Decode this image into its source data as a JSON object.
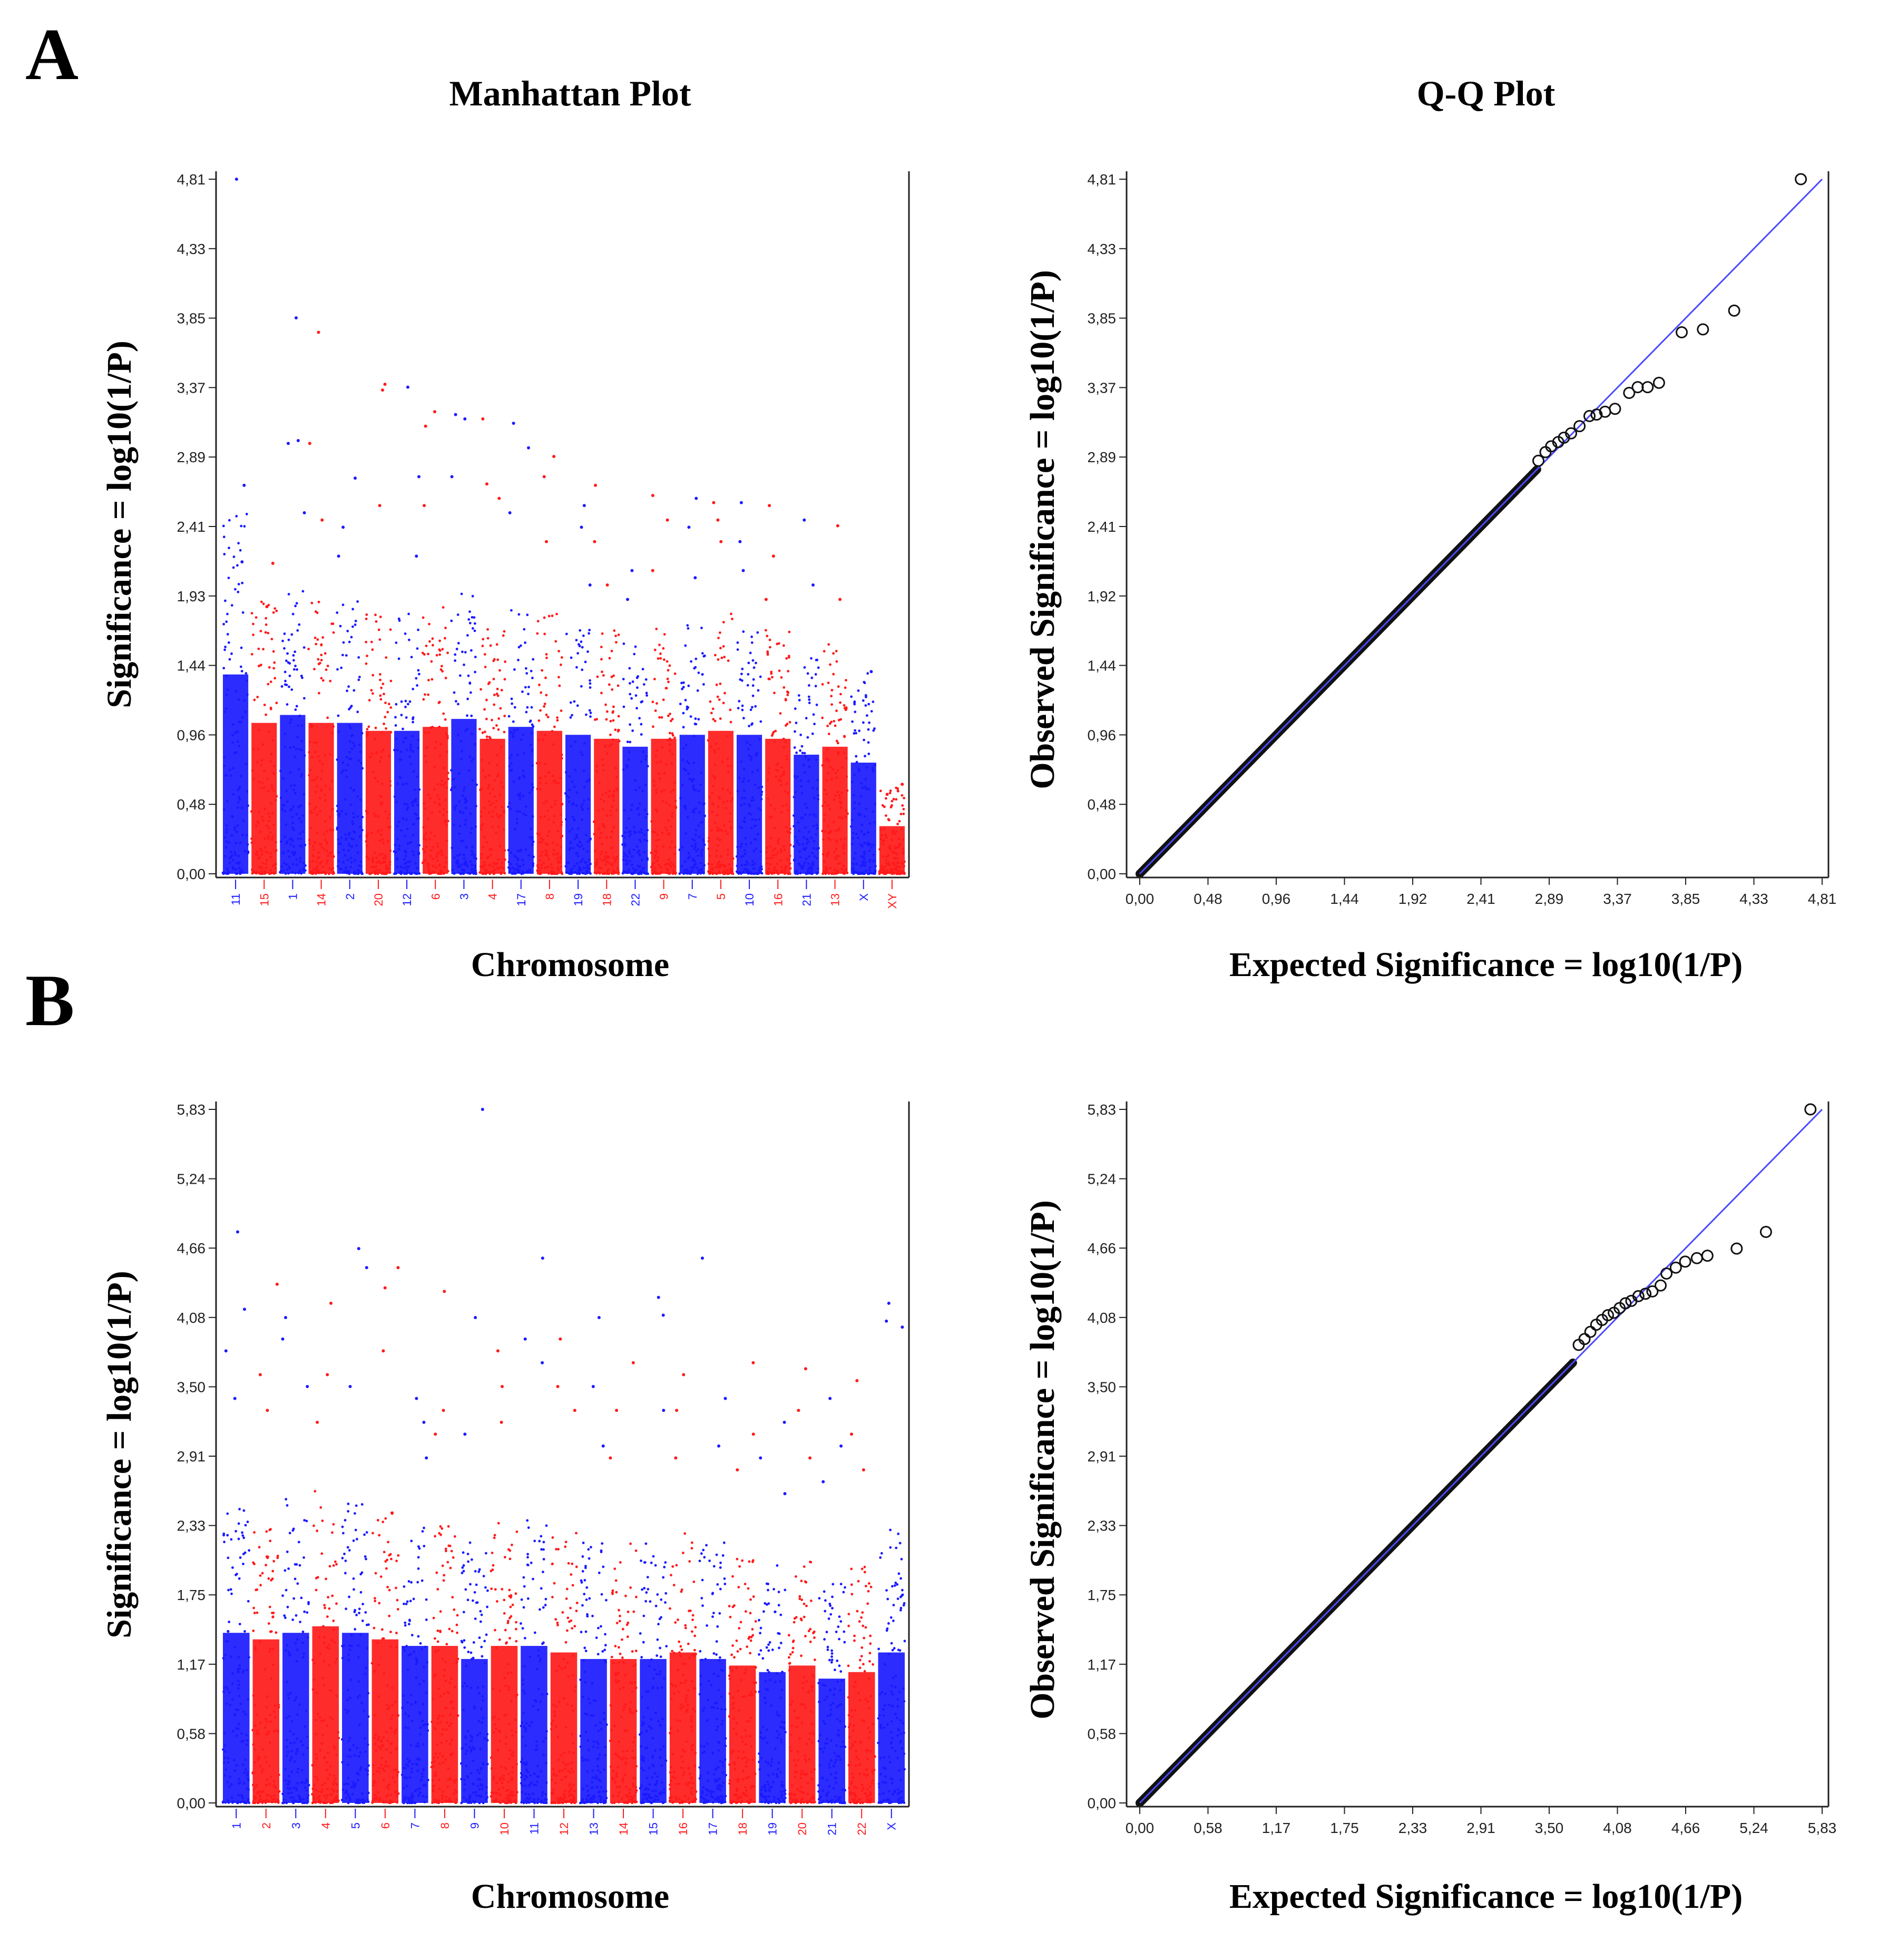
{
  "colors": {
    "blue": "#1a1aff",
    "red": "#ff1a1a",
    "axis": "#222222",
    "diag": "#4a4aff",
    "circle": "#111111"
  },
  "panels": [
    {
      "label": "A",
      "manhattan": {
        "title": "Manhattan Plot",
        "xlabel": "Chromosome",
        "ylabel": "Significance = log10(1/P)",
        "yticks": [
          "0,00",
          "0,48",
          "0,96",
          "1,44",
          "1,93",
          "2,41",
          "2,89",
          "3,37",
          "3,85",
          "4,33",
          "4,81"
        ]
      },
      "qq": {
        "title": "Q-Q Plot",
        "xlabel": "Expected Significance = log10(1/P)",
        "ylabel": "Observed Significance = log10(1/P)",
        "yticks": [
          "0,00",
          "0,48",
          "0,96",
          "1,44",
          "1,92",
          "2,41",
          "2,89",
          "3,37",
          "3,85",
          "4,33",
          "4,81"
        ],
        "xticks": [
          "0,00",
          "0,48",
          "0,96",
          "1,44",
          "1,92",
          "2,41",
          "2,89",
          "3,37",
          "3,85",
          "4,33",
          "4,81"
        ]
      }
    },
    {
      "label": "B",
      "manhattan": {
        "title": "",
        "xlabel": "Chromosome",
        "ylabel": "Significance = log10(1/P)",
        "yticks": [
          "0,00",
          "0,58",
          "1,17",
          "1,75",
          "2,33",
          "2,91",
          "3,50",
          "4,08",
          "4,66",
          "5,24",
          "5,83"
        ]
      },
      "qq": {
        "title": "",
        "xlabel": "Expected Significance = log10(1/P)",
        "ylabel": "Observed Significance = log10(1/P)",
        "yticks": [
          "0,00",
          "0,58",
          "1,17",
          "1,75",
          "2,33",
          "2,91",
          "3,50",
          "4,08",
          "4,66",
          "5,24",
          "5,83"
        ],
        "xticks": [
          "0,00",
          "0,58",
          "1,17",
          "1,75",
          "2,33",
          "2,91",
          "3,50",
          "4,08",
          "4,66",
          "5,24",
          "5,83"
        ]
      }
    }
  ],
  "chart_data": [
    {
      "type": "scatter",
      "subtype": "manhattan",
      "panel": "A",
      "title": "Manhattan Plot",
      "xlabel": "Chromosome",
      "ylabel": "Significance = log10(1/P)",
      "ylim": [
        0,
        4.81
      ],
      "chromosomes": [
        {
          "label": "11",
          "color": "blue",
          "max": 2.51,
          "peaks": [
            4.81,
            2.69,
            2.16
          ]
        },
        {
          "label": "15",
          "color": "red",
          "max": 1.9,
          "peaks": [
            2.15,
            1.85
          ]
        },
        {
          "label": "1",
          "color": "blue",
          "max": 2.0,
          "peaks": [
            3.85,
            3.0,
            2.98,
            2.5
          ]
        },
        {
          "label": "14",
          "color": "red",
          "max": 1.9,
          "peaks": [
            3.75,
            2.98,
            2.45
          ]
        },
        {
          "label": "2",
          "color": "blue",
          "max": 1.9,
          "peaks": [
            2.74,
            2.4,
            2.2
          ]
        },
        {
          "label": "20",
          "color": "red",
          "max": 1.8,
          "peaks": [
            3.39,
            3.35,
            2.55
          ]
        },
        {
          "label": "12",
          "color": "blue",
          "max": 1.8,
          "peaks": [
            3.37,
            2.75,
            2.2
          ]
        },
        {
          "label": "6",
          "color": "red",
          "max": 1.85,
          "peaks": [
            3.2,
            3.1,
            2.55
          ]
        },
        {
          "label": "3",
          "color": "blue",
          "max": 1.95,
          "peaks": [
            3.18,
            3.15,
            2.75
          ]
        },
        {
          "label": "4",
          "color": "red",
          "max": 1.7,
          "peaks": [
            3.15,
            2.7,
            2.6
          ]
        },
        {
          "label": "17",
          "color": "blue",
          "max": 1.85,
          "peaks": [
            3.12,
            2.95,
            2.5
          ]
        },
        {
          "label": "8",
          "color": "red",
          "max": 1.8,
          "peaks": [
            2.89,
            2.75,
            2.3
          ]
        },
        {
          "label": "19",
          "color": "blue",
          "max": 1.75,
          "peaks": [
            2.55,
            2.4,
            2.0
          ]
        },
        {
          "label": "18",
          "color": "red",
          "max": 1.7,
          "peaks": [
            2.69,
            2.3,
            2.0
          ]
        },
        {
          "label": "22",
          "color": "blue",
          "max": 1.6,
          "peaks": [
            2.1,
            1.9
          ]
        },
        {
          "label": "9",
          "color": "red",
          "max": 1.7,
          "peaks": [
            2.62,
            2.45,
            2.1
          ]
        },
        {
          "label": "7",
          "color": "blue",
          "max": 1.75,
          "peaks": [
            2.6,
            2.4,
            2.05
          ]
        },
        {
          "label": "5",
          "color": "red",
          "max": 1.8,
          "peaks": [
            2.57,
            2.45,
            2.3
          ]
        },
        {
          "label": "10",
          "color": "blue",
          "max": 1.75,
          "peaks": [
            2.57,
            2.3,
            2.1
          ]
        },
        {
          "label": "16",
          "color": "red",
          "max": 1.7,
          "peaks": [
            2.55,
            2.2,
            1.9
          ]
        },
        {
          "label": "21",
          "color": "blue",
          "max": 1.5,
          "peaks": [
            2.45,
            2.0
          ]
        },
        {
          "label": "13",
          "color": "red",
          "max": 1.6,
          "peaks": [
            2.41,
            1.9
          ]
        },
        {
          "label": "X",
          "color": "blue",
          "max": 1.4,
          "peaks": [
            1.4,
            0.41,
            0.12
          ]
        },
        {
          "label": "XY",
          "color": "red",
          "max": 0.6,
          "peaks": [
            0.62,
            0.55
          ]
        }
      ]
    },
    {
      "type": "scatter",
      "subtype": "qq",
      "panel": "A",
      "title": "Q-Q Plot",
      "xlabel": "Expected Significance = log10(1/P)",
      "ylabel": "Observed Significance = log10(1/P)",
      "xlim": [
        0,
        4.81
      ],
      "ylim": [
        0,
        4.81
      ],
      "diagonal": [
        [
          0,
          0
        ],
        [
          4.81,
          4.81
        ]
      ],
      "tail_points": [
        [
          4.66,
          4.81
        ],
        [
          4.19,
          3.9
        ],
        [
          3.97,
          3.77
        ],
        [
          3.82,
          3.75
        ],
        [
          3.66,
          3.4
        ],
        [
          3.58,
          3.37
        ],
        [
          3.51,
          3.37
        ],
        [
          3.45,
          3.33
        ],
        [
          3.35,
          3.22
        ],
        [
          3.28,
          3.2
        ],
        [
          3.22,
          3.18
        ],
        [
          3.17,
          3.17
        ],
        [
          3.1,
          3.1
        ],
        [
          3.04,
          3.05
        ],
        [
          2.99,
          3.02
        ],
        [
          2.95,
          2.99
        ],
        [
          2.9,
          2.96
        ],
        [
          2.86,
          2.92
        ],
        [
          2.81,
          2.86
        ]
      ],
      "bulk": {
        "from": [
          0,
          0
        ],
        "to": [
          2.8,
          2.8
        ]
      }
    },
    {
      "type": "scatter",
      "subtype": "manhattan",
      "panel": "B",
      "title": "",
      "xlabel": "Chromosome",
      "ylabel": "Significance = log10(1/P)",
      "ylim": [
        0,
        5.83
      ],
      "chromosomes": [
        {
          "label": "1",
          "color": "blue",
          "max": 2.6,
          "peaks": [
            4.8,
            4.15,
            3.8,
            3.4
          ]
        },
        {
          "label": "2",
          "color": "red",
          "max": 2.5,
          "peaks": [
            4.36,
            3.6,
            3.3
          ]
        },
        {
          "label": "3",
          "color": "blue",
          "max": 2.6,
          "peaks": [
            4.08,
            3.9,
            3.5
          ]
        },
        {
          "label": "4",
          "color": "red",
          "max": 2.7,
          "peaks": [
            4.2,
            3.6,
            3.2
          ]
        },
        {
          "label": "5",
          "color": "blue",
          "max": 2.6,
          "peaks": [
            4.66,
            4.5,
            3.5
          ]
        },
        {
          "label": "6",
          "color": "red",
          "max": 2.5,
          "peaks": [
            4.5,
            4.33,
            3.8
          ]
        },
        {
          "label": "7",
          "color": "blue",
          "max": 2.4,
          "peaks": [
            3.4,
            3.2,
            2.9
          ]
        },
        {
          "label": "8",
          "color": "red",
          "max": 2.4,
          "peaks": [
            4.3,
            3.3,
            3.1
          ]
        },
        {
          "label": "9",
          "color": "blue",
          "max": 2.2,
          "peaks": [
            5.83,
            4.08,
            3.1
          ]
        },
        {
          "label": "10",
          "color": "red",
          "max": 2.4,
          "peaks": [
            3.8,
            3.5,
            3.2
          ]
        },
        {
          "label": "11",
          "color": "blue",
          "max": 2.4,
          "peaks": [
            4.58,
            3.9,
            3.7
          ]
        },
        {
          "label": "12",
          "color": "red",
          "max": 2.3,
          "peaks": [
            3.9,
            3.5,
            3.3
          ]
        },
        {
          "label": "13",
          "color": "blue",
          "max": 2.2,
          "peaks": [
            4.08,
            3.5,
            3.0
          ]
        },
        {
          "label": "14",
          "color": "red",
          "max": 2.2,
          "peaks": [
            3.7,
            3.3,
            2.9
          ]
        },
        {
          "label": "15",
          "color": "blue",
          "max": 2.2,
          "peaks": [
            4.25,
            4.1,
            3.3
          ]
        },
        {
          "label": "16",
          "color": "red",
          "max": 2.3,
          "peaks": [
            3.6,
            3.3,
            2.9
          ]
        },
        {
          "label": "17",
          "color": "blue",
          "max": 2.2,
          "peaks": [
            4.58,
            3.4,
            3.0
          ]
        },
        {
          "label": "18",
          "color": "red",
          "max": 2.1,
          "peaks": [
            3.7,
            3.1,
            2.8
          ]
        },
        {
          "label": "19",
          "color": "blue",
          "max": 2.0,
          "peaks": [
            3.2,
            2.9,
            2.6
          ]
        },
        {
          "label": "20",
          "color": "red",
          "max": 2.1,
          "peaks": [
            3.65,
            3.3,
            2.9
          ]
        },
        {
          "label": "21",
          "color": "blue",
          "max": 1.9,
          "peaks": [
            3.4,
            3.0,
            2.7
          ]
        },
        {
          "label": "22",
          "color": "red",
          "max": 2.0,
          "peaks": [
            3.55,
            3.1,
            2.8
          ]
        },
        {
          "label": "X",
          "color": "blue",
          "max": 2.3,
          "peaks": [
            4.2,
            4.05,
            4.0
          ]
        }
      ]
    },
    {
      "type": "scatter",
      "subtype": "qq",
      "panel": "B",
      "title": "",
      "xlabel": "Expected Significance = log10(1/P)",
      "ylabel": "Observed Significance = log10(1/P)",
      "xlim": [
        0,
        5.83
      ],
      "ylim": [
        0,
        5.83
      ],
      "diagonal": [
        [
          0,
          0
        ],
        [
          5.83,
          5.83
        ]
      ],
      "tail_points": [
        [
          5.73,
          5.83
        ],
        [
          5.35,
          4.8
        ],
        [
          5.1,
          4.66
        ],
        [
          4.85,
          4.6
        ],
        [
          4.76,
          4.58
        ],
        [
          4.66,
          4.55
        ],
        [
          4.58,
          4.5
        ],
        [
          4.5,
          4.45
        ],
        [
          4.45,
          4.35
        ],
        [
          4.38,
          4.3
        ],
        [
          4.32,
          4.28
        ],
        [
          4.26,
          4.26
        ],
        [
          4.2,
          4.22
        ],
        [
          4.15,
          4.2
        ],
        [
          4.1,
          4.16
        ],
        [
          4.05,
          4.12
        ],
        [
          4.0,
          4.1
        ],
        [
          3.95,
          4.06
        ],
        [
          3.9,
          4.02
        ],
        [
          3.85,
          3.96
        ],
        [
          3.8,
          3.9
        ],
        [
          3.75,
          3.85
        ]
      ],
      "bulk": {
        "from": [
          0,
          0
        ],
        "to": [
          3.7,
          3.7
        ]
      }
    }
  ]
}
